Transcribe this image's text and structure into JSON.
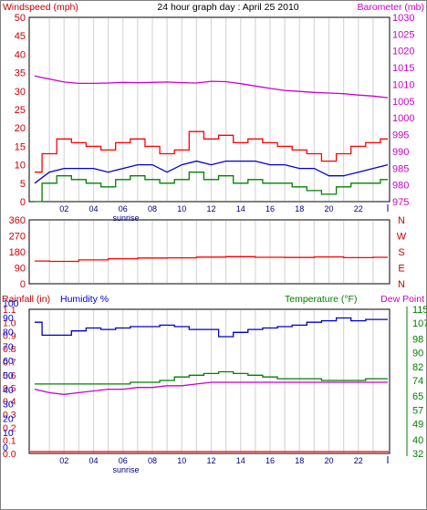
{
  "chart_data": [
    {
      "type": "line",
      "title": "24 hour graph day : April 25 2010",
      "left_axis_label": "Windspeed (mph)",
      "right_axis_label": "Barometer (mb)",
      "left_ylim": [
        0,
        50
      ],
      "left_ticks": [
        "0",
        "5",
        "10",
        "15",
        "20",
        "25",
        "30",
        "35",
        "40",
        "45",
        "50"
      ],
      "right_ylim": [
        975,
        1030
      ],
      "right_ticks": [
        "975",
        "980",
        "985",
        "990",
        "995",
        "1000",
        "1005",
        "1010",
        "1015",
        "1020",
        "1025",
        "1030"
      ],
      "x_ticks": [
        "02",
        "04",
        "06",
        "08",
        "10",
        "12",
        "14",
        "16",
        "18",
        "20",
        "22"
      ],
      "x_marker_label": "sunrise",
      "x_marker_hour": 6.2,
      "grid": true,
      "colors": {
        "gust": "#ff0000",
        "avg": "#0000cc",
        "speed": "#008000",
        "barometer": "#cc00cc",
        "left_label": "#cc0000",
        "right_label": "#cc00cc"
      },
      "series": [
        {
          "axis": "right",
          "color": "#cc00cc",
          "x": [
            0,
            1,
            2,
            3,
            4,
            5,
            6,
            7,
            8,
            9,
            10,
            11,
            12,
            13,
            14,
            15,
            16,
            17,
            18,
            19,
            20,
            21,
            22,
            23,
            24
          ],
          "values": [
            1012.5,
            1011.6,
            1010.7,
            1010.3,
            1010.3,
            1010.4,
            1010.6,
            1010.5,
            1010.6,
            1010.7,
            1010.5,
            1010.4,
            1010.9,
            1010.8,
            1010.2,
            1009.5,
            1008.8,
            1008.2,
            1007.9,
            1007.6,
            1007.4,
            1007.2,
            1006.8,
            1006.5,
            1006.0
          ]
        },
        {
          "axis": "left",
          "color": "#ff0000",
          "x": [
            0,
            1,
            2,
            3,
            4,
            5,
            6,
            7,
            8,
            9,
            10,
            11,
            12,
            13,
            14,
            15,
            16,
            17,
            18,
            19,
            20,
            21,
            22,
            23,
            24
          ],
          "values": [
            8,
            13,
            17,
            16,
            15,
            14,
            16,
            17,
            15,
            13,
            14,
            19,
            17,
            18,
            16,
            17,
            16,
            15,
            14,
            13,
            11,
            13,
            15,
            16,
            17
          ]
        },
        {
          "axis": "left",
          "color": "#0000cc",
          "x": [
            0,
            1,
            2,
            3,
            4,
            5,
            6,
            7,
            8,
            9,
            10,
            11,
            12,
            13,
            14,
            15,
            16,
            17,
            18,
            19,
            20,
            21,
            22,
            23,
            24
          ],
          "values": [
            5,
            8,
            9,
            9,
            9,
            8,
            9,
            10,
            10,
            8,
            10,
            11,
            10,
            11,
            11,
            11,
            10,
            10,
            9,
            9,
            7,
            7,
            8,
            9,
            10
          ]
        },
        {
          "axis": "left",
          "color": "#008000",
          "x": [
            0,
            1,
            2,
            3,
            4,
            5,
            6,
            7,
            8,
            9,
            10,
            11,
            12,
            13,
            14,
            15,
            16,
            17,
            18,
            19,
            20,
            21,
            22,
            23,
            24
          ],
          "values": [
            0,
            5,
            7,
            6,
            5,
            4,
            6,
            7,
            6,
            5,
            6,
            8,
            6,
            7,
            5,
            6,
            5,
            5,
            4,
            3,
            2,
            4,
            5,
            5,
            6
          ]
        }
      ]
    },
    {
      "type": "line",
      "left_ticks": [
        "0",
        "90",
        "180",
        "270",
        "360"
      ],
      "left_ylim": [
        0,
        360
      ],
      "right_ticks": [
        "N",
        "E",
        "S",
        "W",
        "N"
      ],
      "grid": true,
      "series": [
        {
          "axis": "left",
          "color": "#ff0000",
          "x": [
            0,
            2,
            4,
            6,
            8,
            10,
            12,
            14,
            16,
            18,
            20,
            22,
            24
          ],
          "values": [
            128,
            126,
            134,
            141,
            145,
            146,
            150,
            153,
            149,
            148,
            151,
            147,
            149
          ]
        }
      ]
    },
    {
      "type": "line",
      "left_axis_label_a": "Rainfall (in)",
      "left_axis_label_b": "Humidity %",
      "right_axis_label_a": "Temperature (°F)",
      "right_axis_label_b": "Dew Point",
      "rain_ticks": [
        "0.0",
        "0.1",
        "0.2",
        "0.3",
        "0.4",
        "0.5",
        "0.6",
        "0.7",
        "0.8",
        "0.9",
        "1.0",
        "1.1"
      ],
      "humidity_ticks": [
        "0",
        "10",
        "20",
        "30",
        "40",
        "50",
        "60",
        "70",
        "80",
        "90",
        "100"
      ],
      "humidity_ylim": [
        0,
        100
      ],
      "temp_ticks": [
        "32",
        "40",
        "49",
        "57",
        "65",
        "74",
        "82",
        "90",
        "98",
        "107",
        "115"
      ],
      "temp_ylim": [
        32,
        115
      ],
      "x_ticks": [
        "02",
        "04",
        "06",
        "08",
        "10",
        "12",
        "14",
        "16",
        "18",
        "20",
        "22"
      ],
      "x_marker_label": "sunrise",
      "x_marker_hour": 6.2,
      "grid": true,
      "colors": {
        "rain_label": "#cc0000",
        "humidity_label": "#0000cc",
        "temp_label": "#008000",
        "dew_label": "#cc00cc"
      },
      "series": [
        {
          "axis": "humidity",
          "color": "#0000cc",
          "x": [
            0,
            1,
            2,
            3,
            4,
            5,
            6,
            7,
            8,
            9,
            10,
            11,
            12,
            13,
            14,
            15,
            16,
            17,
            18,
            19,
            20,
            21,
            22,
            23,
            24
          ],
          "values": [
            91,
            82,
            82,
            85,
            87,
            86,
            87,
            88,
            88,
            89,
            88,
            86,
            86,
            81,
            84,
            86,
            87,
            88,
            89,
            91,
            92,
            94,
            92,
            93,
            93
          ]
        },
        {
          "axis": "temp",
          "color": "#008000",
          "x": [
            0,
            1,
            2,
            3,
            4,
            5,
            6,
            7,
            8,
            9,
            10,
            11,
            12,
            13,
            14,
            15,
            16,
            17,
            18,
            19,
            20,
            21,
            22,
            23,
            24
          ],
          "values": [
            72,
            72,
            72,
            72,
            72,
            72,
            72,
            73,
            73,
            74,
            76,
            77,
            78,
            79,
            78,
            77,
            76,
            75,
            75,
            75,
            74,
            74,
            74,
            75,
            75
          ]
        },
        {
          "axis": "temp",
          "color": "#cc00cc",
          "x": [
            0,
            1,
            2,
            3,
            4,
            5,
            6,
            7,
            8,
            9,
            10,
            11,
            12,
            13,
            14,
            15,
            16,
            17,
            18,
            19,
            20,
            21,
            22,
            23,
            24
          ],
          "values": [
            69,
            67,
            66,
            67,
            68,
            69,
            69,
            70,
            70,
            71,
            71,
            72,
            73,
            73,
            73,
            73,
            73,
            73,
            73,
            73,
            73,
            73,
            73,
            73,
            73
          ]
        },
        {
          "axis": "rain",
          "color": "#ff0000",
          "x": [
            0,
            24
          ],
          "values": [
            0.0,
            0.0
          ]
        }
      ]
    }
  ]
}
